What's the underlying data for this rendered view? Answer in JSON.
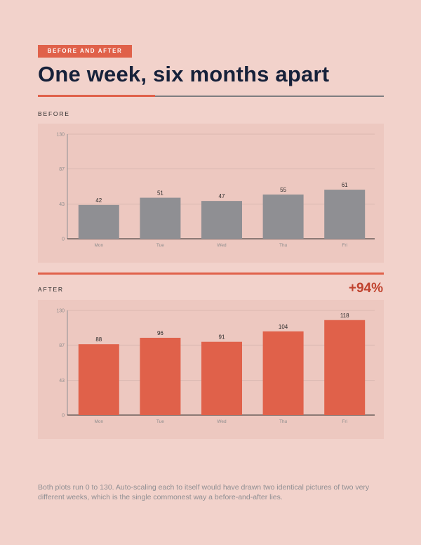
{
  "header": {
    "tag": "BEFORE AND AFTER",
    "title": "One week, six months apart"
  },
  "before": {
    "label": "BEFORE"
  },
  "after": {
    "label": "AFTER",
    "delta": "+94%"
  },
  "footnote": "Both plots run 0 to 130. Auto-scaling each to itself would have drawn two identical pictures of two very different weeks, which is the single commonest way a before-and-after lies.",
  "colors": {
    "before_bar": "#8f8f93",
    "after_bar": "#e0614a",
    "accent": "#e0614a",
    "background": "#f2d2cb"
  },
  "chart_data": [
    {
      "type": "bar",
      "title": "",
      "xlabel": "",
      "ylabel": "",
      "categories": [
        "Mon",
        "Tue",
        "Wed",
        "Thu",
        "Fri"
      ],
      "values": [
        42,
        51,
        47,
        55,
        61
      ],
      "ylim": [
        0,
        130
      ],
      "yticks": [
        0,
        43,
        87,
        130
      ],
      "data_labels": true,
      "grid": true,
      "color": "#8f8f93"
    },
    {
      "type": "bar",
      "title": "",
      "xlabel": "",
      "ylabel": "",
      "categories": [
        "Mon",
        "Tue",
        "Wed",
        "Thu",
        "Fri"
      ],
      "values": [
        88,
        96,
        91,
        104,
        118
      ],
      "ylim": [
        0,
        130
      ],
      "yticks": [
        0,
        43,
        87,
        130
      ],
      "data_labels": true,
      "grid": true,
      "color": "#e0614a"
    }
  ]
}
